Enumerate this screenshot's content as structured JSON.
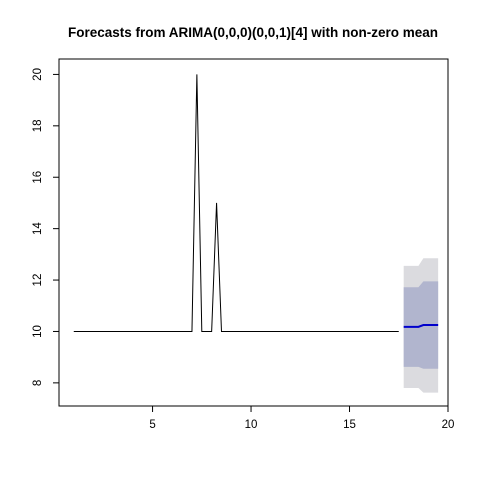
{
  "chart_data": {
    "type": "line",
    "title": "Forecasts from ARIMA(0,0,0)(0,0,1)[4] with non-zero mean",
    "xlabel": "",
    "ylabel": "",
    "xlim": [
      0.25,
      20
    ],
    "ylim": [
      7.1,
      20.6
    ],
    "xticks": [
      5,
      10,
      15,
      20
    ],
    "yticks": [
      8,
      10,
      12,
      14,
      16,
      18,
      20
    ],
    "grid": false,
    "legend": "none",
    "series": [
      {
        "x": [
          1,
          1.25,
          1.5,
          1.75,
          2,
          2.25,
          2.5,
          2.75,
          3,
          3.25,
          3.5,
          3.75,
          4,
          4.25,
          4.5,
          4.75,
          5,
          5.25,
          5.5,
          5.75,
          6,
          6.25,
          6.5,
          6.75,
          7,
          7.25,
          7.5,
          7.75,
          8,
          8.25,
          8.5,
          8.75,
          9,
          9.25,
          9.5,
          9.75,
          10,
          10.25,
          10.5,
          10.75,
          11,
          11.25,
          11.5,
          11.75,
          12,
          12.25,
          12.5,
          12.75,
          13,
          13.25,
          13.5,
          13.75,
          14,
          14.25,
          14.5,
          14.75,
          15,
          15.25,
          15.5,
          15.75,
          16,
          16.25,
          16.5,
          16.75,
          17,
          17.25,
          17.5
        ],
        "values": [
          10,
          10,
          10,
          10,
          10,
          10,
          10,
          10,
          10,
          10,
          10,
          10,
          10,
          10,
          10,
          10,
          10,
          10,
          10,
          10,
          10,
          10,
          10,
          10,
          10,
          20,
          10,
          10,
          10,
          15,
          10,
          10,
          10,
          10,
          10,
          10,
          10,
          10,
          10,
          10,
          10,
          10,
          10,
          10,
          10,
          10,
          10,
          10,
          10,
          10,
          10,
          10,
          10,
          10,
          10,
          10,
          10,
          10,
          10,
          10,
          10,
          10,
          10,
          10,
          10,
          10,
          10
        ]
      }
    ],
    "forecast": {
      "x": [
        17.75,
        18,
        18.25,
        18.5,
        18.75,
        19,
        19.25,
        19.5
      ],
      "mean": [
        10.18,
        10.18,
        10.18,
        10.18,
        10.25,
        10.25,
        10.25,
        10.25
      ],
      "lo80": [
        8.62,
        8.62,
        8.62,
        8.62,
        8.55,
        8.55,
        8.55,
        8.55
      ],
      "hi80": [
        11.72,
        11.72,
        11.72,
        11.72,
        11.95,
        11.95,
        11.95,
        11.95
      ],
      "lo95": [
        7.8,
        7.8,
        7.8,
        7.8,
        7.62,
        7.62,
        7.62,
        7.62
      ],
      "hi95": [
        12.55,
        12.55,
        12.55,
        12.55,
        12.85,
        12.85,
        12.85,
        12.85
      ]
    },
    "colors": {
      "series": "#000000",
      "forecast_mean": "#0000cc",
      "band80": "#b1b5ce",
      "band95": "#dbdbdf",
      "axis": "#000000"
    }
  }
}
